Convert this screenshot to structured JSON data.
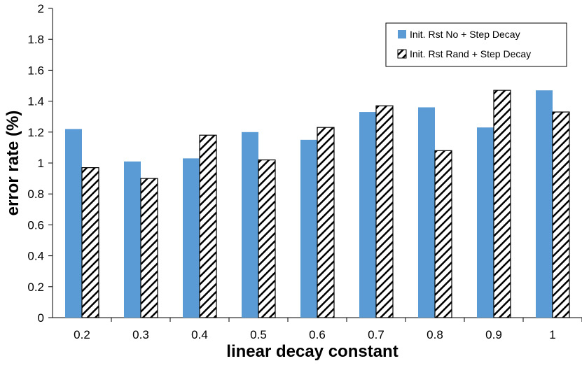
{
  "chart_data": {
    "type": "bar",
    "title": "",
    "xlabel": "linear decay constant",
    "ylabel": "error rate (%)",
    "categories": [
      "0.2",
      "0.3",
      "0.4",
      "0.5",
      "0.6",
      "0.7",
      "0.8",
      "0.9",
      "1"
    ],
    "series": [
      {
        "name": "Init. Rst No + Step Decay",
        "values": [
          1.22,
          1.01,
          1.03,
          1.2,
          1.15,
          1.33,
          1.36,
          1.23,
          1.47
        ],
        "color": "#5b9bd5",
        "pattern": "solid"
      },
      {
        "name": "Init. Rst Rand + Step Decay",
        "values": [
          0.97,
          0.9,
          1.18,
          1.02,
          1.23,
          1.37,
          1.08,
          1.47,
          1.33
        ],
        "color": "#000000",
        "pattern": "diagonal-hatch"
      }
    ],
    "ylim": [
      0,
      2
    ],
    "yticks": [
      "0",
      "0.2",
      "0.4",
      "0.6",
      "0.8",
      "1",
      "1.2",
      "1.4",
      "1.6",
      "1.8",
      "2"
    ],
    "grid": false,
    "legend_position": "top-right"
  }
}
